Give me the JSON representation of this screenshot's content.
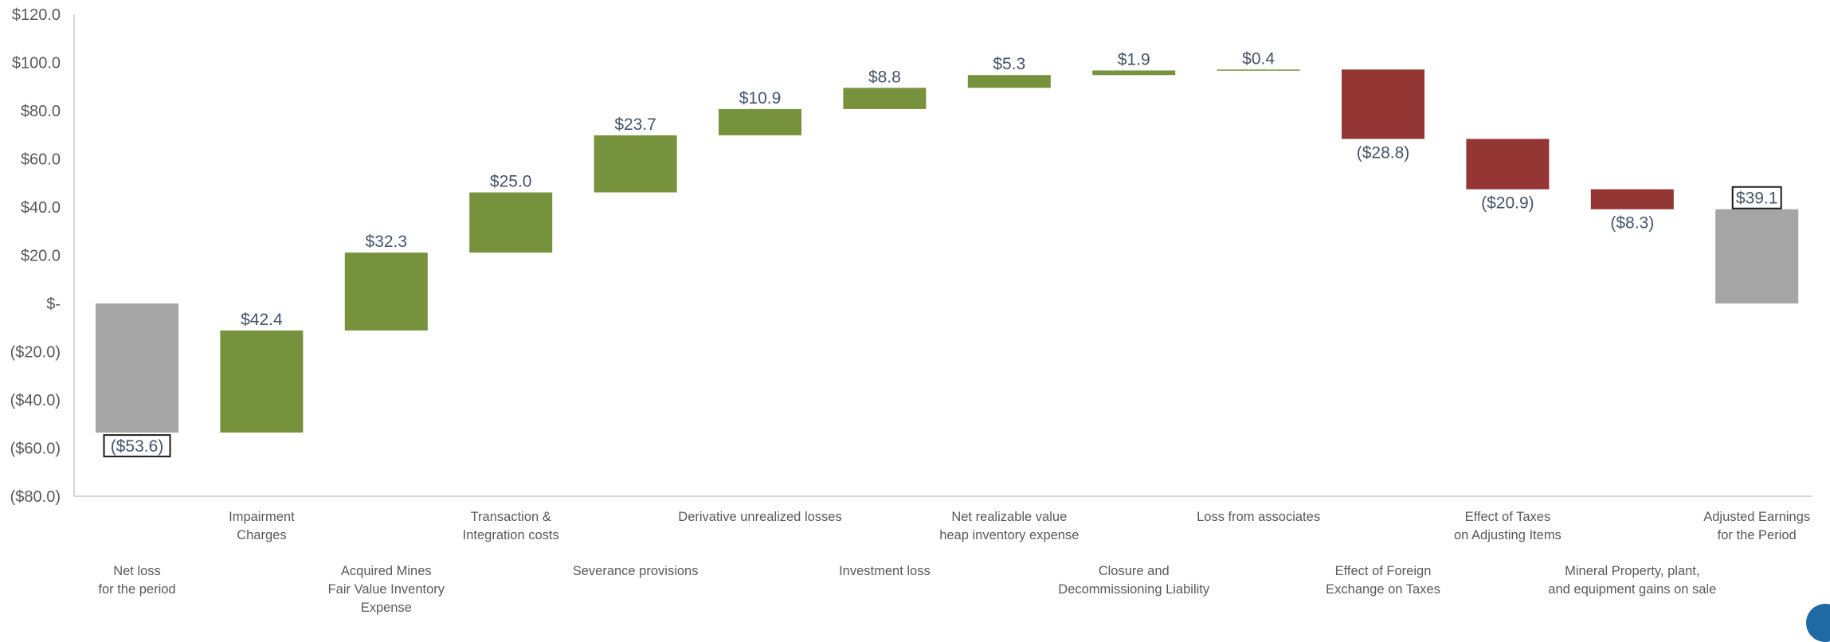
{
  "chart_data": {
    "type": "bar",
    "subtype": "waterfall",
    "title": "",
    "xlabel": "",
    "ylabel": "",
    "ylim": [
      -80,
      120
    ],
    "yticks": [
      {
        "value": 120,
        "label": "$120.0"
      },
      {
        "value": 100,
        "label": "$100.0"
      },
      {
        "value": 80,
        "label": "$80.0"
      },
      {
        "value": 60,
        "label": "$60.0"
      },
      {
        "value": 40,
        "label": "$40.0"
      },
      {
        "value": 20,
        "label": "$20.0"
      },
      {
        "value": 0,
        "label": "$-"
      },
      {
        "value": -20,
        "label": "($20.0)"
      },
      {
        "value": -40,
        "label": "($40.0)"
      },
      {
        "value": -60,
        "label": "($60.0)"
      },
      {
        "value": -80,
        "label": "($80.0)"
      }
    ],
    "grid": false,
    "legend": "none",
    "colors": {
      "total": "#a5a5a5",
      "increase": "#76923c",
      "decrease": "#943634",
      "label": "#44546a",
      "axis": "#595959"
    },
    "categories": [
      {
        "lines": [
          "Net loss",
          "for the period"
        ],
        "row": "lower"
      },
      {
        "lines": [
          "Impairment",
          "Charges"
        ],
        "row": "upper"
      },
      {
        "lines": [
          "Acquired Mines",
          "Fair Value Inventory",
          "Expense"
        ],
        "row": "lower"
      },
      {
        "lines": [
          "Transaction &",
          "Integration costs"
        ],
        "row": "upper"
      },
      {
        "lines": [
          "Severance provisions"
        ],
        "row": "lower"
      },
      {
        "lines": [
          "Derivative unrealized losses"
        ],
        "row": "upper"
      },
      {
        "lines": [
          "Investment loss"
        ],
        "row": "lower"
      },
      {
        "lines": [
          "Net realizable value",
          "heap inventory expense"
        ],
        "row": "upper"
      },
      {
        "lines": [
          "Closure and",
          "Decommissioning Liability"
        ],
        "row": "lower"
      },
      {
        "lines": [
          "Loss from associates"
        ],
        "row": "upper"
      },
      {
        "lines": [
          "Effect of Foreign",
          "Exchange on Taxes"
        ],
        "row": "lower"
      },
      {
        "lines": [
          "Effect of Taxes",
          "on Adjusting Items"
        ],
        "row": "upper"
      },
      {
        "lines": [
          "Mineral Property, plant,",
          "and equipment gains on sale"
        ],
        "row": "lower"
      },
      {
        "lines": [
          "Adjusted Earnings",
          "for the Period"
        ],
        "row": "upper"
      }
    ],
    "bars": [
      {
        "kind": "total",
        "value": -53.6,
        "label": "($53.6)",
        "label_pos": "below",
        "boxed": true
      },
      {
        "kind": "increase",
        "value": 42.4,
        "label": "$42.4",
        "label_pos": "above"
      },
      {
        "kind": "increase",
        "value": 32.3,
        "label": "$32.3",
        "label_pos": "above"
      },
      {
        "kind": "increase",
        "value": 25.0,
        "label": "$25.0",
        "label_pos": "above"
      },
      {
        "kind": "increase",
        "value": 23.7,
        "label": "$23.7",
        "label_pos": "above"
      },
      {
        "kind": "increase",
        "value": 10.9,
        "label": "$10.9",
        "label_pos": "above"
      },
      {
        "kind": "increase",
        "value": 8.8,
        "label": "$8.8",
        "label_pos": "above"
      },
      {
        "kind": "increase",
        "value": 5.3,
        "label": "$5.3",
        "label_pos": "above"
      },
      {
        "kind": "increase",
        "value": 1.9,
        "label": "$1.9",
        "label_pos": "above"
      },
      {
        "kind": "increase",
        "value": 0.4,
        "label": "$0.4",
        "label_pos": "above"
      },
      {
        "kind": "decrease",
        "value": -28.8,
        "label": "($28.8)",
        "label_pos": "below"
      },
      {
        "kind": "decrease",
        "value": -20.9,
        "label": "($20.9)",
        "label_pos": "below"
      },
      {
        "kind": "decrease",
        "value": -8.3,
        "label": "($8.3)",
        "label_pos": "below"
      },
      {
        "kind": "total",
        "value": 39.1,
        "label": "$39.1",
        "label_pos": "above",
        "boxed": true
      }
    ]
  }
}
